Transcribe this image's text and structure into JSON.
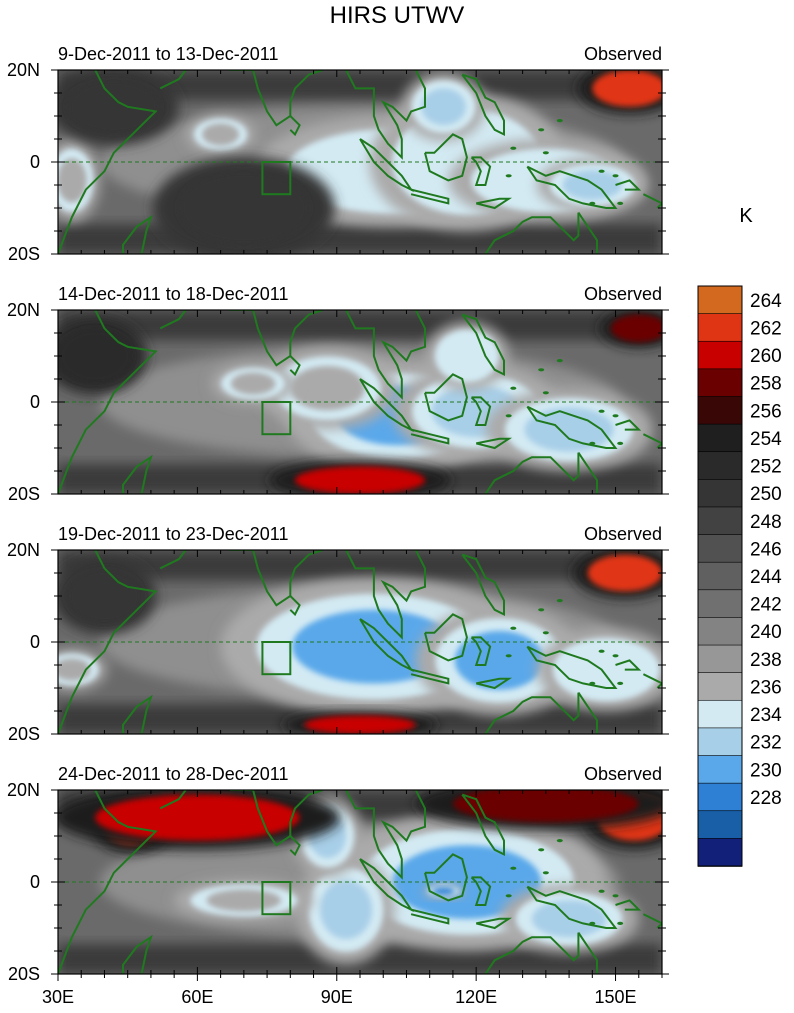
{
  "title": "HIRS UTWV",
  "chart_data": {
    "type": "heatmap",
    "title": "HIRS UTWV",
    "units_label": "K",
    "x_ticks": [
      "30E",
      "60E",
      "90E",
      "120E",
      "150E"
    ],
    "y_ticks": [
      "20N",
      "0",
      "20S"
    ],
    "xlim": [
      30,
      160
    ],
    "ylim": [
      -20,
      20
    ],
    "equator_line": true,
    "box_region": {
      "lon": [
        74,
        80
      ],
      "lat": [
        -7,
        0
      ]
    },
    "panels": [
      {
        "date_label": "9-Dec-2011 to 13-Dec-2011",
        "type_label": "Observed",
        "features": [
          {
            "kind": "moist",
            "lon": 102,
            "lat": -2,
            "rlon": 20,
            "rlat": 8,
            "value": 234
          },
          {
            "kind": "moist",
            "lon": 118,
            "lat": 0,
            "rlon": 14,
            "rlat": 10,
            "value": 234
          },
          {
            "kind": "moist",
            "lon": 135,
            "lat": -4,
            "rlon": 14,
            "rlat": 6,
            "value": 234
          },
          {
            "kind": "moist",
            "lon": 113,
            "lat": 12,
            "rlon": 6,
            "rlat": 5,
            "value": 232
          },
          {
            "kind": "moist",
            "lon": 145,
            "lat": -5,
            "rlon": 8,
            "rlat": 4,
            "value": 232
          },
          {
            "kind": "moist",
            "lon": 33,
            "lat": -4,
            "rlon": 4,
            "rlat": 6,
            "value": 236
          },
          {
            "kind": "moist",
            "lon": 65,
            "lat": 6,
            "rlon": 5,
            "rlat": 3,
            "value": 236
          },
          {
            "kind": "dry",
            "lon": 153,
            "lat": 16,
            "rlon": 8,
            "rlat": 4,
            "value": 262
          },
          {
            "kind": "dry",
            "lon": 42,
            "lat": 12,
            "rlon": 10,
            "rlat": 6,
            "value": 250
          },
          {
            "kind": "dry",
            "lon": 70,
            "lat": -10,
            "rlon": 14,
            "rlat": 8,
            "value": 250
          }
        ]
      },
      {
        "date_label": "14-Dec-2011 to 18-Dec-2011",
        "type_label": "Observed",
        "features": [
          {
            "kind": "moist",
            "lon": 103,
            "lat": -3,
            "rlon": 16,
            "rlat": 8,
            "value": 230
          },
          {
            "kind": "moist",
            "lon": 88,
            "lat": 3,
            "rlon": 10,
            "rlat": 6,
            "value": 236
          },
          {
            "kind": "moist",
            "lon": 120,
            "lat": -2,
            "rlon": 12,
            "rlat": 7,
            "value": 232
          },
          {
            "kind": "moist",
            "lon": 140,
            "lat": -6,
            "rlon": 12,
            "rlat": 6,
            "value": 232
          },
          {
            "kind": "moist",
            "lon": 72,
            "lat": 4,
            "rlon": 6,
            "rlat": 3,
            "value": 236
          },
          {
            "kind": "moist",
            "lon": 118,
            "lat": 10,
            "rlon": 6,
            "rlat": 5,
            "value": 234
          },
          {
            "kind": "dry",
            "lon": 95,
            "lat": -17,
            "rlon": 14,
            "rlat": 3,
            "value": 260
          },
          {
            "kind": "dry",
            "lon": 155,
            "lat": 16,
            "rlon": 6,
            "rlat": 3,
            "value": 258
          },
          {
            "kind": "dry",
            "lon": 38,
            "lat": 10,
            "rlon": 8,
            "rlat": 6,
            "value": 252
          }
        ]
      },
      {
        "date_label": "19-Dec-2011 to 23-Dec-2011",
        "type_label": "Observed",
        "features": [
          {
            "kind": "moist",
            "lon": 98,
            "lat": -1,
            "rlon": 22,
            "rlat": 10,
            "value": 230
          },
          {
            "kind": "moist",
            "lon": 125,
            "lat": -4,
            "rlon": 12,
            "rlat": 8,
            "value": 230
          },
          {
            "kind": "moist",
            "lon": 148,
            "lat": -6,
            "rlon": 10,
            "rlat": 6,
            "value": 234
          },
          {
            "kind": "moist",
            "lon": 33,
            "lat": -6,
            "rlon": 5,
            "rlat": 3,
            "value": 236
          },
          {
            "kind": "dry",
            "lon": 152,
            "lat": 15,
            "rlon": 8,
            "rlat": 4,
            "value": 262
          },
          {
            "kind": "dry",
            "lon": 95,
            "lat": -18,
            "rlon": 12,
            "rlat": 2,
            "value": 260
          },
          {
            "kind": "dry",
            "lon": 40,
            "lat": 10,
            "rlon": 8,
            "rlat": 6,
            "value": 250
          }
        ]
      },
      {
        "date_label": "24-Dec-2011 to 28-Dec-2011",
        "type_label": "Observed",
        "features": [
          {
            "kind": "moist",
            "lon": 118,
            "lat": 0,
            "rlon": 20,
            "rlat": 10,
            "value": 230
          },
          {
            "kind": "moist",
            "lon": 113,
            "lat": -2,
            "rlon": 3,
            "rlat": 1,
            "value": 228
          },
          {
            "kind": "moist",
            "lon": 92,
            "lat": -6,
            "rlon": 7,
            "rlat": 8,
            "value": 232
          },
          {
            "kind": "moist",
            "lon": 88,
            "lat": 10,
            "rlon": 5,
            "rlat": 6,
            "value": 232
          },
          {
            "kind": "moist",
            "lon": 140,
            "lat": -8,
            "rlon": 10,
            "rlat": 5,
            "value": 232
          },
          {
            "kind": "moist",
            "lon": 70,
            "lat": -4,
            "rlon": 10,
            "rlat": 3,
            "value": 236
          },
          {
            "kind": "dry",
            "lon": 46,
            "lat": 12,
            "rlon": 6,
            "rlat": 4,
            "value": 262
          },
          {
            "kind": "dry",
            "lon": 60,
            "lat": 14,
            "rlon": 22,
            "rlat": 5,
            "value": 260
          },
          {
            "kind": "dry",
            "lon": 154,
            "lat": 14,
            "rlon": 8,
            "rlat": 5,
            "value": 262
          },
          {
            "kind": "dry",
            "lon": 135,
            "lat": 17,
            "rlon": 20,
            "rlat": 4,
            "value": 258
          }
        ]
      }
    ],
    "colorbar": {
      "labels": [
        "264",
        "262",
        "260",
        "258",
        "256",
        "254",
        "252",
        "250",
        "248",
        "246",
        "244",
        "242",
        "240",
        "238",
        "236",
        "234",
        "232",
        "230",
        "228"
      ],
      "colors": [
        "#d2691e",
        "#e03515",
        "#c80000",
        "#6a0000",
        "#3a0707",
        "#1f1f1f",
        "#2a2a2a",
        "#353535",
        "#424242",
        "#515151",
        "#606060",
        "#707070",
        "#838383",
        "#979797",
        "#abaaaa",
        "#d3eaf3",
        "#a8cfe8",
        "#5aa8ea",
        "#2d80d4",
        "#195fa8",
        "#13207a"
      ]
    }
  }
}
